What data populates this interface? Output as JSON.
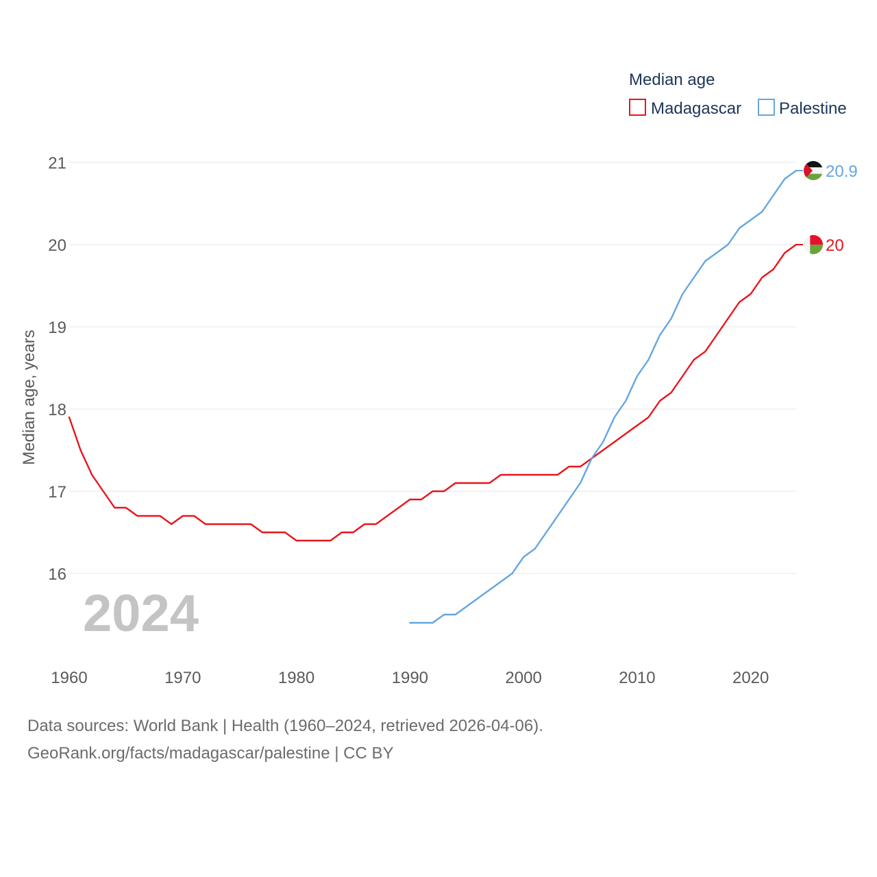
{
  "chart_data": {
    "type": "line",
    "legend_title": "Median age",
    "ylabel": "Median age, years",
    "xlim": [
      1960,
      2024
    ],
    "ylim": [
      15.2,
      21.25
    ],
    "yticks": [
      16,
      17,
      18,
      19,
      20,
      21
    ],
    "xticks": [
      1960,
      1970,
      1980,
      1990,
      2000,
      2010,
      2020
    ],
    "year_watermark": "2024",
    "legend_placement": "top-right",
    "series": [
      {
        "name": "Madagascar",
        "color": "#e8141b",
        "end_label": "20",
        "flag": "madagascar-flag",
        "x": [
          1960,
          1961,
          1962,
          1963,
          1964,
          1965,
          1966,
          1967,
          1968,
          1969,
          1970,
          1971,
          1972,
          1973,
          1974,
          1975,
          1976,
          1977,
          1978,
          1979,
          1980,
          1981,
          1982,
          1983,
          1984,
          1985,
          1986,
          1987,
          1988,
          1989,
          1990,
          1991,
          1992,
          1993,
          1994,
          1995,
          1996,
          1997,
          1998,
          1999,
          2000,
          2001,
          2002,
          2003,
          2004,
          2005,
          2006,
          2007,
          2008,
          2009,
          2010,
          2011,
          2012,
          2013,
          2014,
          2015,
          2016,
          2017,
          2018,
          2019,
          2020,
          2021,
          2022,
          2023,
          2024
        ],
        "values": [
          17.9,
          17.5,
          17.2,
          17.0,
          16.8,
          16.8,
          16.7,
          16.7,
          16.7,
          16.6,
          16.7,
          16.7,
          16.6,
          16.6,
          16.6,
          16.6,
          16.6,
          16.5,
          16.5,
          16.5,
          16.4,
          16.4,
          16.4,
          16.4,
          16.5,
          16.5,
          16.6,
          16.6,
          16.7,
          16.8,
          16.9,
          16.9,
          17.0,
          17.0,
          17.1,
          17.1,
          17.1,
          17.1,
          17.2,
          17.2,
          17.2,
          17.2,
          17.2,
          17.2,
          17.3,
          17.3,
          17.4,
          17.5,
          17.6,
          17.7,
          17.8,
          17.9,
          18.1,
          18.2,
          18.4,
          18.6,
          18.7,
          18.9,
          19.1,
          19.3,
          19.4,
          19.6,
          19.7,
          19.9,
          20.0
        ]
      },
      {
        "name": "Palestine",
        "color": "#64a5e0",
        "end_label": "20.9",
        "flag": "palestine-flag",
        "x": [
          1990,
          1991,
          1992,
          1993,
          1994,
          1995,
          1996,
          1997,
          1998,
          1999,
          2000,
          2001,
          2002,
          2003,
          2004,
          2005,
          2006,
          2007,
          2008,
          2009,
          2010,
          2011,
          2012,
          2013,
          2014,
          2015,
          2016,
          2017,
          2018,
          2019,
          2020,
          2021,
          2022,
          2023,
          2024
        ],
        "values": [
          15.4,
          15.4,
          15.4,
          15.5,
          15.5,
          15.6,
          15.7,
          15.8,
          15.9,
          16.0,
          16.2,
          16.3,
          16.5,
          16.7,
          16.9,
          17.1,
          17.4,
          17.6,
          17.9,
          18.1,
          18.4,
          18.6,
          18.9,
          19.1,
          19.4,
          19.6,
          19.8,
          19.9,
          20.0,
          20.2,
          20.3,
          20.4,
          20.6,
          20.8,
          20.9
        ]
      }
    ]
  },
  "sources": {
    "line1": "Data sources: World Bank | Health (1960–2024, retrieved 2026-04-06).",
    "line2": "GeoRank.org/facts/madagascar/palestine | CC BY"
  }
}
